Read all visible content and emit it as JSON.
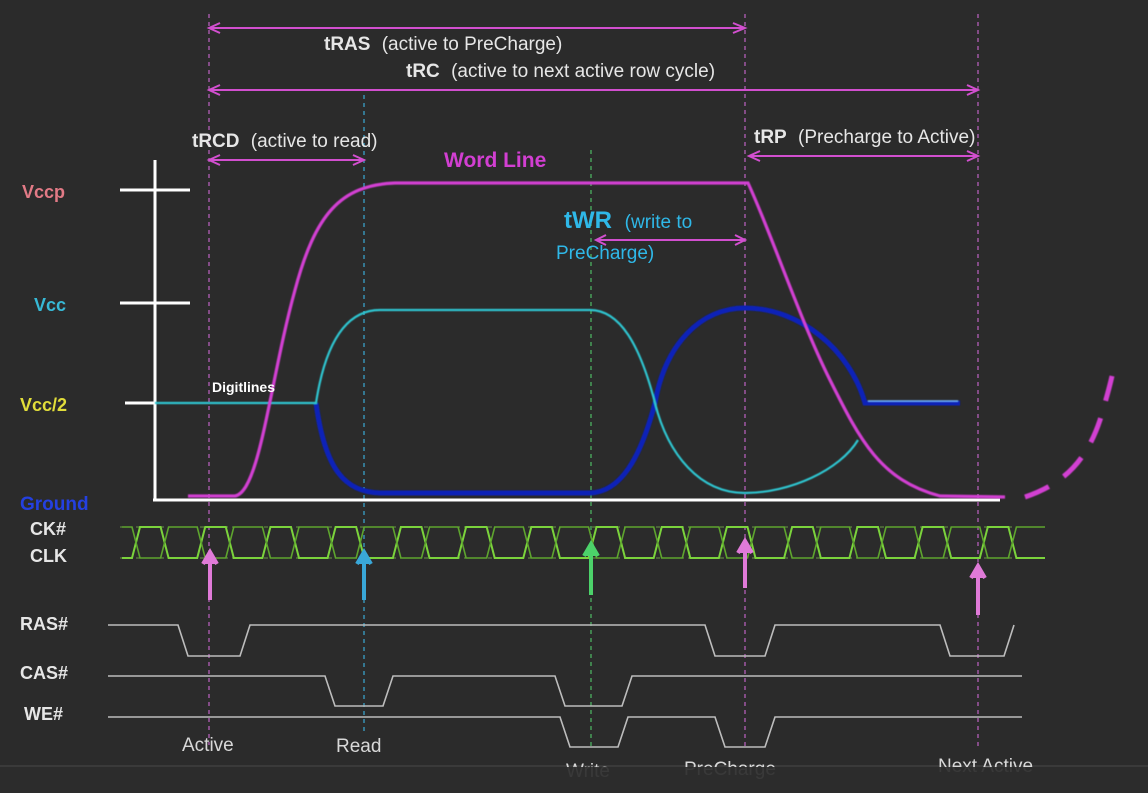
{
  "colors": {
    "background": "#2b2b2b",
    "word_line": "#d23fd2",
    "digitline_light": "#2fc4cf",
    "digitline_dark": "#0a20b8",
    "clock": "#7bd33c",
    "signal": "#bdbdbd",
    "axis": "#ffffff",
    "marker_active": "#e07ad8",
    "marker_read": "#39a7d8",
    "marker_write": "#4cd26a",
    "label_vccp": "#e27a86",
    "label_vcc": "#37b9d6",
    "label_vcc2": "#e1dd3a",
    "label_ground": "#2440e0"
  },
  "voltage_labels": {
    "vccp": "Vccp",
    "vcc": "Vcc",
    "vcc_half": "Vcc/2",
    "ground": "Ground"
  },
  "timing": {
    "tras_name": "tRAS",
    "tras_desc": "(active to PreCharge)",
    "trc_name": "tRC",
    "trc_desc": "(active to next active row cycle)",
    "trcd_name": "tRCD",
    "trcd_desc": "(active to read)",
    "trp_name": "tRP",
    "trp_desc": "(Precharge to Active)",
    "twr_name": "tWR",
    "twr_desc_line1": "(write to",
    "twr_desc_line2": "PreCharge)"
  },
  "curve_labels": {
    "word_line": "Word Line",
    "digitlines": "Digitlines"
  },
  "signal_labels": {
    "ck_bar": "CK#",
    "clk": "CLK",
    "ras": "RAS#",
    "cas": "CAS#",
    "we": "WE#"
  },
  "event_labels": {
    "active": "Active",
    "read": "Read",
    "write": "Write",
    "precharge": "PreCharge",
    "next_active": "Next Active"
  },
  "clock_cycles": 14
}
